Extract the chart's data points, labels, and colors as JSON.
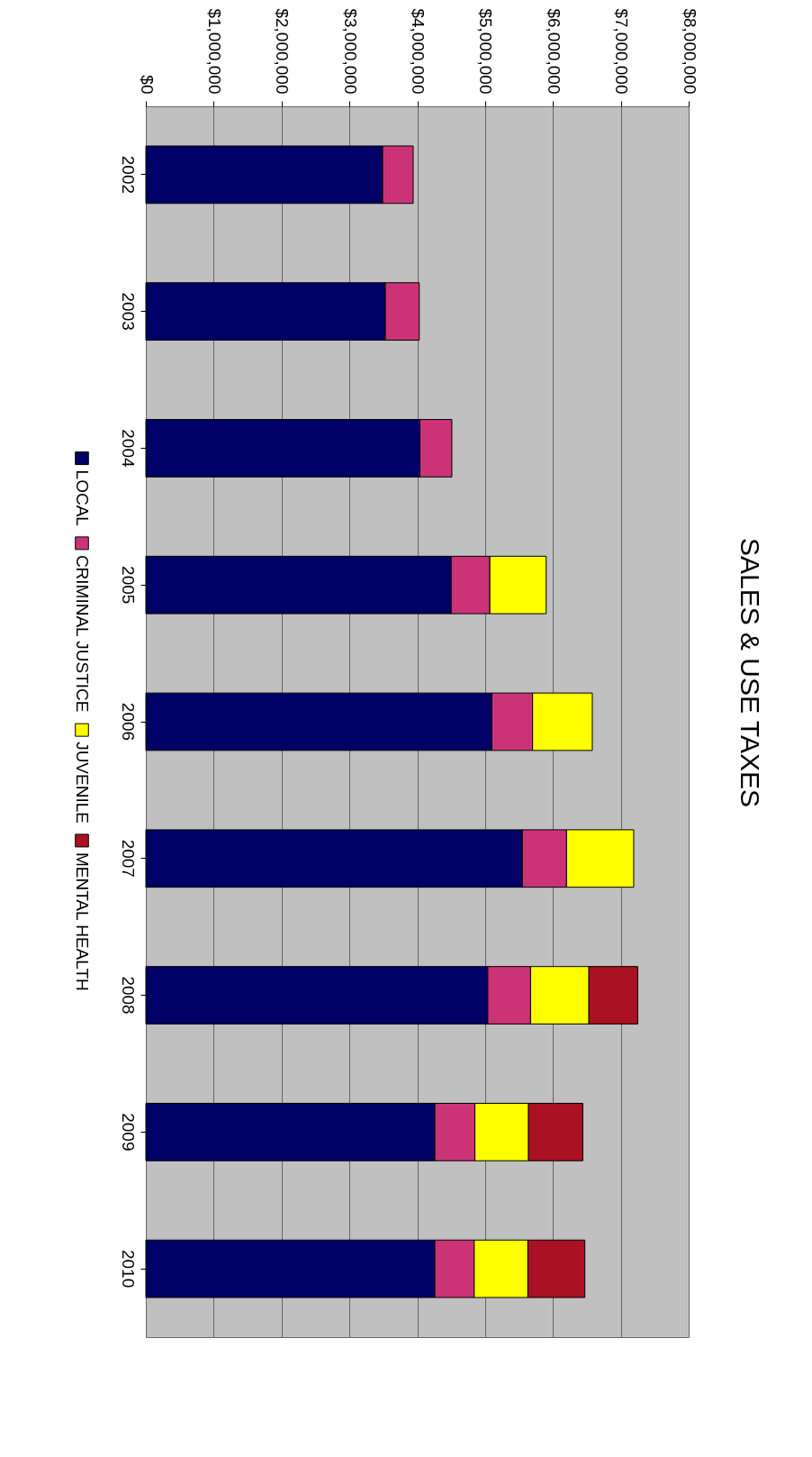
{
  "chart_data": {
    "type": "bar",
    "title": "SALES & USE TAXES",
    "stacked": true,
    "orientation": "horizontal",
    "categories": [
      "2002",
      "2003",
      "2004",
      "2005",
      "2006",
      "2007",
      "2008",
      "2009",
      "2010"
    ],
    "series": [
      {
        "name": "LOCAL",
        "color": "#000066",
        "values": [
          3490000,
          3530000,
          4040000,
          4500000,
          5100000,
          5550000,
          5040000,
          4260000,
          4260000
        ]
      },
      {
        "name": "CRIMINAL JUSTICE",
        "color": "#cc3377",
        "values": [
          450000,
          500000,
          470000,
          570000,
          600000,
          650000,
          630000,
          590000,
          580000
        ]
      },
      {
        "name": "JUVENILE",
        "color": "#ffff00",
        "values": [
          null,
          null,
          null,
          830000,
          880000,
          990000,
          860000,
          790000,
          790000
        ]
      },
      {
        "name": "MENTAL HEALTH",
        "color": "#aa1122",
        "values": [
          null,
          null,
          null,
          null,
          null,
          null,
          720000,
          800000,
          840000
        ]
      }
    ],
    "xlim": [
      0,
      8000000
    ],
    "xticks": [
      {
        "value": 0,
        "label": "$0"
      },
      {
        "value": 1000000,
        "label": "$1,000,000"
      },
      {
        "value": 2000000,
        "label": "$2,000,000"
      },
      {
        "value": 3000000,
        "label": "$3,000,000"
      },
      {
        "value": 4000000,
        "label": "$4,000,000"
      },
      {
        "value": 5000000,
        "label": "$5,000,000"
      },
      {
        "value": 6000000,
        "label": "$6,000,000"
      },
      {
        "value": 7000000,
        "label": "$7,000,000"
      },
      {
        "value": 8000000,
        "label": "$8,000,000"
      }
    ],
    "grid": "x",
    "legend": "left"
  }
}
